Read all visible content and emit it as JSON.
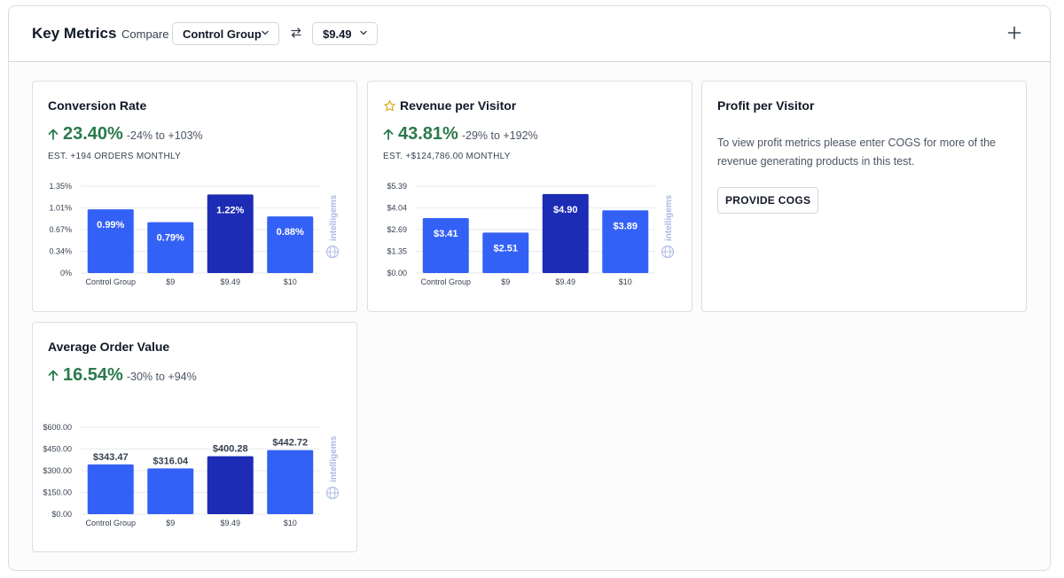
{
  "header": {
    "title": "Key Metrics",
    "compare_label": "Compare",
    "compare_select": "Control Group",
    "target_select": "$9.49"
  },
  "colors": {
    "bar": "#3461f5",
    "bar_highlight": "#1d2cb5",
    "positive": "#2b7a4b",
    "watermark": "#a9b8e6"
  },
  "watermark": "intelligems",
  "cards": {
    "conversion": {
      "title": "Conversion Rate",
      "value": "23.40%",
      "range": "-24% to +103%",
      "estimate": "EST. +194 ORDERS MONTHLY"
    },
    "revenue": {
      "title": "Revenue per Visitor",
      "value": "43.81%",
      "range": "-29% to +192%",
      "estimate": "EST. +$124,786.00 MONTHLY"
    },
    "profit": {
      "title": "Profit per Visitor",
      "message": "To view profit metrics please enter COGS for more of the revenue generating products in this test.",
      "button": "PROVIDE COGS"
    },
    "aov": {
      "title": "Average Order Value",
      "value": "16.54%",
      "range": "-30% to +94%"
    }
  },
  "chart_data": [
    {
      "type": "bar",
      "categories": [
        "Control Group",
        "$9",
        "$9.49",
        "$10"
      ],
      "values": [
        0.99,
        0.79,
        1.22,
        0.88
      ],
      "labels": [
        "0.99%",
        "0.79%",
        "1.22%",
        "0.88%"
      ],
      "ticks": [
        "0%",
        "0.34%",
        "0.67%",
        "1.01%",
        "1.35%"
      ],
      "ylim": [
        0,
        1.35
      ],
      "highlight": 2,
      "label_inside": true,
      "grid": true
    },
    {
      "type": "bar",
      "categories": [
        "Control Group",
        "$9",
        "$9.49",
        "$10"
      ],
      "values": [
        3.41,
        2.51,
        4.9,
        3.89
      ],
      "labels": [
        "$3.41",
        "$2.51",
        "$4.90",
        "$3.89"
      ],
      "ticks": [
        "$0.00",
        "$1.35",
        "$2.69",
        "$4.04",
        "$5.39"
      ],
      "ylim": [
        0,
        5.39
      ],
      "highlight": 2,
      "label_inside": true,
      "grid": true
    },
    {
      "type": "bar",
      "categories": [
        "Control Group",
        "$9",
        "$9.49",
        "$10"
      ],
      "values": [
        343.47,
        316.04,
        400.28,
        442.72
      ],
      "labels": [
        "$343.47",
        "$316.04",
        "$400.28",
        "$442.72"
      ],
      "ticks": [
        "$0.00",
        "$150.00",
        "$300.00",
        "$450.00",
        "$600.00"
      ],
      "ylim": [
        0,
        600
      ],
      "highlight": 2,
      "label_inside": false,
      "grid": true
    }
  ]
}
